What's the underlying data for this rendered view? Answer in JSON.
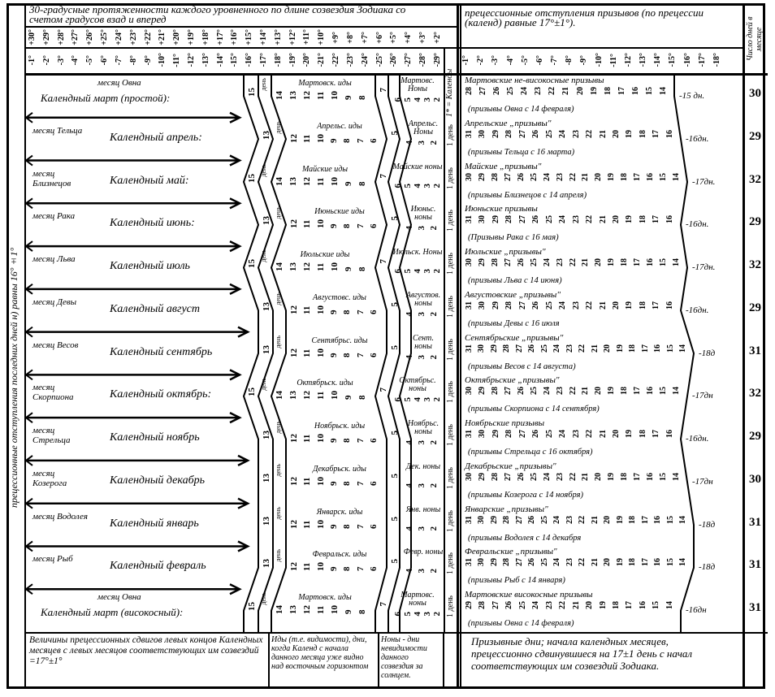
{
  "header": {
    "left_title": "30-градусные протяженности каждого уровненного по длине созвездия Зодиака со счетом градусов взад и вперед",
    "plus_degrees": [
      "+30°",
      "+29°",
      "+28°",
      "+27°",
      "+26°",
      "+25°",
      "+24°",
      "+23°",
      "+22°",
      "+21°",
      "+20°",
      "+19°",
      "+18°",
      "+17°",
      "+16°",
      "+15°",
      "+14°",
      "+13°",
      "+12°",
      "+11°",
      "+10°",
      "+9°",
      "+8°",
      "+7°",
      "+6°",
      "+5°",
      "+4°",
      "+3°",
      "+2°"
    ],
    "minus_degrees": [
      "-1°",
      "-2°",
      "-3°",
      "-4°",
      "-5°",
      "-6°",
      "-7°",
      "-8°",
      "-9°",
      "-10°",
      "-11°",
      "-12°",
      "-13°",
      "-14°",
      "-15°",
      "-16°",
      "-17°",
      "-18°",
      "-19°",
      "-20°",
      "-21°",
      "-22°",
      "-23°",
      "-24°",
      "-25°",
      "-26°",
      "-27°",
      "-28°",
      "-29°"
    ],
    "kalends_label": "1* = Календы",
    "right_title": "прецессионные отступления призывов (по прецессии (календ) равные 17°±1°).",
    "right_degrees": [
      "-1°",
      "-2°",
      "-3°",
      "-4°",
      "-5°",
      "-6°",
      "-7°",
      "-8°",
      "-9°",
      "-10°",
      "-11°",
      "-12°",
      "-13°",
      "-14°",
      "-15°",
      "-16°",
      "-17°",
      "-18°"
    ],
    "days_count_title": "Число дней в месяце"
  },
  "left_strip_text": "прецессионные отступления последних дней н) равны 16°±1°",
  "band_label": "день",
  "kalends_day": "1 день",
  "months": [
    {
      "zodiac": "месяц Овна",
      "calendar": "Календный март (простой):",
      "ides_label": "Мартовск. иды",
      "ides": [
        "15",
        "14",
        "13",
        "12",
        "11",
        "10",
        "9",
        "8"
      ],
      "nones_start": "7",
      "nones_label": "Мартовс. Ноны",
      "nones": [
        "6",
        "5",
        "4",
        "3",
        "2"
      ],
      "r_title": "Мартовские не-високосные призывы",
      "r_days": [
        "28",
        "27",
        "26",
        "25",
        "24",
        "23",
        "22",
        "21",
        "20",
        "19",
        "18",
        "17",
        "16",
        "15",
        "14"
      ],
      "r_sign": "(призывы Овна с 14 февраля)",
      "r_offset": "-15 дн.",
      "count": "30"
    },
    {
      "zodiac": "месяц Тельца",
      "calendar": "Календный апрель:",
      "ides_label": "Апрельс. иды",
      "ides": [
        "13",
        "12",
        "11",
        "10",
        "9",
        "8",
        "7",
        "6"
      ],
      "nones_start": "5",
      "nones_label": "Апрельс. Ноны",
      "nones": [
        "4",
        "3",
        "2"
      ],
      "r_title": "Апрельские „призывы\"",
      "r_days": [
        "31",
        "30",
        "29",
        "28",
        "27",
        "26",
        "25",
        "24",
        "23",
        "22",
        "21",
        "20",
        "19",
        "18",
        "17",
        "16"
      ],
      "r_sign": "(призывы Тельца с 16 марта)",
      "r_offset": "-16дн.",
      "count": "29"
    },
    {
      "zodiac": "месяц Близнецов",
      "calendar": "Календный май:",
      "ides_label": "Майские иды",
      "ides": [
        "15",
        "14",
        "13",
        "12",
        "11",
        "10",
        "9",
        "8"
      ],
      "nones_start": "7",
      "nones_label": "Майские ноны",
      "nones": [
        "6",
        "5",
        "4",
        "3",
        "2"
      ],
      "r_title": "Майские „призывы\"",
      "r_days": [
        "30",
        "29",
        "28",
        "27",
        "26",
        "25",
        "24",
        "23",
        "22",
        "21",
        "20",
        "19",
        "18",
        "17",
        "16",
        "15",
        "14"
      ],
      "r_sign": "(призывы Близнецов с 14 апреля)",
      "r_offset": "-17дн.",
      "count": "32"
    },
    {
      "zodiac": "месяц Рака",
      "calendar": "Календный июнь:",
      "ides_label": "Июньские иды",
      "ides": [
        "13",
        "12",
        "11",
        "10",
        "9",
        "8",
        "7",
        "6"
      ],
      "nones_start": "5",
      "nones_label": "Июньс. ноны",
      "nones": [
        "4",
        "3",
        "2"
      ],
      "r_title": "Июньские призывы",
      "r_days": [
        "31",
        "30",
        "29",
        "28",
        "27",
        "26",
        "25",
        "24",
        "23",
        "22",
        "21",
        "20",
        "19",
        "18",
        "17",
        "16"
      ],
      "r_sign": "(Призывы Рака с 16 мая)",
      "r_offset": "-16дн.",
      "count": "29"
    },
    {
      "zodiac": "месяц Льва",
      "calendar": "Календный июль",
      "ides_label": "Июльские иды",
      "ides": [
        "15",
        "14",
        "13",
        "12",
        "11",
        "10",
        "9",
        "8"
      ],
      "nones_start": "7",
      "nones_label": "Июльск. Ноны",
      "nones": [
        "6",
        "5",
        "4",
        "3",
        "2"
      ],
      "r_title": "Июльские „призывы\"",
      "r_days": [
        "30",
        "29",
        "28",
        "27",
        "26",
        "25",
        "24",
        "23",
        "22",
        "21",
        "20",
        "19",
        "18",
        "17",
        "16",
        "15",
        "14"
      ],
      "r_sign": "(призывы Льва с 14 июня)",
      "r_offset": "-17дн.",
      "count": "32"
    },
    {
      "zodiac": "месяц Девы",
      "calendar": "Календный август",
      "ides_label": "Августовс. иды",
      "ides": [
        "13",
        "12",
        "11",
        "10",
        "9",
        "8",
        "7",
        "6"
      ],
      "nones_start": "5",
      "nones_label": "Августов. ноны",
      "nones": [
        "4",
        "3",
        "2"
      ],
      "r_title": "Августовские „призывы\"",
      "r_days": [
        "31",
        "30",
        "29",
        "28",
        "27",
        "26",
        "25",
        "24",
        "23",
        "22",
        "21",
        "20",
        "19",
        "18",
        "17",
        "16"
      ],
      "r_sign": "(призывы Девы с 16 июля",
      "r_offset": "-16дн.",
      "count": "29"
    },
    {
      "zodiac": "месяц Весов",
      "calendar": "Календный сентябрь",
      "ides_label": "Сентябрьс. иды",
      "ides": [
        "13",
        "12",
        "11",
        "10",
        "9",
        "8",
        "7",
        "6"
      ],
      "nones_start": "5",
      "nones_label": "Сент. ноны",
      "nones": [
        "4",
        "3",
        "2"
      ],
      "r_title": "Сентябрьские „призывы\"",
      "r_days": [
        "31",
        "30",
        "29",
        "28",
        "27",
        "26",
        "25",
        "24",
        "23",
        "22",
        "21",
        "20",
        "19",
        "18",
        "17",
        "16",
        "15",
        "14"
      ],
      "r_sign": "(призывы Весов с 14 августа)",
      "r_offset": "-18д",
      "count": "31"
    },
    {
      "zodiac": "месяц Скорпиона",
      "calendar": "Календный октябрь:",
      "ides_label": "Октябрьск. иды",
      "ides": [
        "15",
        "14",
        "13",
        "12",
        "11",
        "10",
        "9",
        "8"
      ],
      "nones_start": "7",
      "nones_label": "Октябрьс. ноны",
      "nones": [
        "6",
        "5",
        "4",
        "3",
        "2"
      ],
      "r_title": "Октябрьские „призывы\"",
      "r_days": [
        "30",
        "29",
        "28",
        "27",
        "26",
        "25",
        "24",
        "23",
        "22",
        "21",
        "20",
        "19",
        "18",
        "17",
        "16",
        "15",
        "14"
      ],
      "r_sign": "(призывы Скорпиона с 14 сентября)",
      "r_offset": "-17дн",
      "count": "32"
    },
    {
      "zodiac": "месяц Стрельца",
      "calendar": "Календный ноябрь",
      "ides_label": "Ноябрьск. иды",
      "ides": [
        "13",
        "12",
        "11",
        "10",
        "9",
        "8",
        "7",
        "6"
      ],
      "nones_start": "5",
      "nones_label": "Ноябрьс. ноны",
      "nones": [
        "4",
        "3",
        "2"
      ],
      "r_title": "Ноябрьские призывы",
      "r_days": [
        "31",
        "30",
        "29",
        "28",
        "27",
        "26",
        "25",
        "24",
        "23",
        "22",
        "21",
        "20",
        "19",
        "18",
        "17",
        "16"
      ],
      "r_sign": "(призывы Стрельца с 16 октября)",
      "r_offset": "-16дн.",
      "count": "29"
    },
    {
      "zodiac": "месяц Козерога",
      "calendar": "Календный декабрь",
      "ides_label": "Декабрьск. иды",
      "ides": [
        "13",
        "12",
        "11",
        "10",
        "9",
        "8",
        "7",
        "6"
      ],
      "nones_start": "5",
      "nones_label": "Дек. ноны",
      "nones": [
        "4",
        "3",
        "2"
      ],
      "r_title": "Декабрьские „призывы\"",
      "r_days": [
        "30",
        "29",
        "28",
        "27",
        "26",
        "25",
        "24",
        "23",
        "22",
        "21",
        "20",
        "19",
        "18",
        "17",
        "16",
        "15",
        "14"
      ],
      "r_sign": "(призывы Козерога с 14 ноября)",
      "r_offset": "-17дн",
      "count": "30"
    },
    {
      "zodiac": "месяц Водолея",
      "calendar": "Календный январь",
      "ides_label": "Январск. иды",
      "ides": [
        "13",
        "12",
        "11",
        "10",
        "9",
        "8",
        "7",
        "6"
      ],
      "nones_start": "5",
      "nones_label": "Янв. ноны",
      "nones": [
        "4",
        "3",
        "2"
      ],
      "r_title": "Январские „призывы\"",
      "r_days": [
        "31",
        "30",
        "29",
        "28",
        "27",
        "26",
        "25",
        "24",
        "23",
        "22",
        "21",
        "20",
        "19",
        "18",
        "17",
        "16",
        "15",
        "14"
      ],
      "r_sign": "(призывы Водолея с 14 декабря",
      "r_offset": "-18д",
      "count": "31"
    },
    {
      "zodiac": "месяц Рыб",
      "calendar": "Календный февраль",
      "ides_label": "Февральск. иды",
      "ides": [
        "13",
        "12",
        "11",
        "10",
        "9",
        "8",
        "7",
        "6"
      ],
      "nones_start": "5",
      "nones_label": "Февр. ноны",
      "nones": [
        "4",
        "3",
        "2"
      ],
      "r_title": "Февральские „призывы\"",
      "r_days": [
        "31",
        "30",
        "29",
        "28",
        "27",
        "26",
        "25",
        "24",
        "23",
        "22",
        "21",
        "20",
        "19",
        "18",
        "17",
        "16",
        "15",
        "14"
      ],
      "r_sign": "(призывы Рыб с 14 января)",
      "r_offset": "-18д",
      "count": "31"
    },
    {
      "zodiac": "месяц Овна",
      "calendar": "Календный март (високосный):",
      "ides_label": "Мартовск. иды",
      "ides": [
        "15",
        "14",
        "13",
        "12",
        "11",
        "10",
        "9",
        "8"
      ],
      "nones_start": "7",
      "nones_label": "Мартовс. ноны",
      "nones": [
        "6",
        "5",
        "4",
        "3",
        "2"
      ],
      "r_title": "Мартовские високосные призывы",
      "r_days": [
        "29",
        "28",
        "27",
        "26",
        "25",
        "24",
        "23",
        "22",
        "21",
        "20",
        "19",
        "18",
        "17",
        "16",
        "15",
        "14"
      ],
      "r_sign": "(призывы Овна с 14 февраля)",
      "r_offset": "-16дн",
      "count": "31"
    }
  ],
  "footer": {
    "note1": "Величины прецессионных сдвигов левых концов Календных месяцев с левых месяцов соответствующих им созвездий =17°±1°",
    "note2": "Иды (т.е. видимости), дни, когда Календ с начала данного месяца уже видно над восточным горизонтом",
    "note3": "Ноны - дни невидимости данного созвездия за солнцем.",
    "note4": "Призывные дни; начала календных месяцев, прецессионно сдвинувшиеся на 17±1 день с начал соответствующих им созвездий Зодиака."
  }
}
